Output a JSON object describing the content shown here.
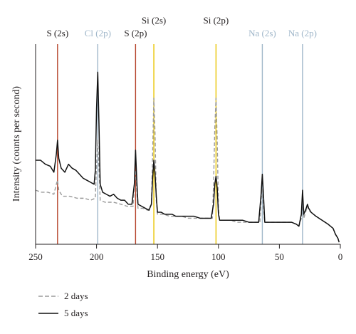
{
  "chart_data": {
    "type": "line",
    "xlabel": "Binding energy (eV)",
    "ylabel": "Intensity (counts per second)",
    "xlim": [
      250,
      0
    ],
    "x_reversed": true,
    "xticks": [
      250,
      200,
      150,
      100,
      50,
      0
    ],
    "y_units": "relative (no y tick labels shown)",
    "ylim": [
      0,
      100
    ],
    "legend_position": "bottom-left",
    "peak_markers": [
      {
        "label": "S (2s)",
        "x": 232,
        "color": "#b5452c"
      },
      {
        "label": "Cl (2p)",
        "x": 199,
        "color": "#9fb6c9"
      },
      {
        "label": "S (2p)",
        "x": 168,
        "color": "#b5452c"
      },
      {
        "label": "Si (2s)",
        "x": 153,
        "color": "#e9c400"
      },
      {
        "label": "Si (2p)",
        "x": 102,
        "color": "#e9c400"
      },
      {
        "label": "Na (2s)",
        "x": 64,
        "color": "#9fb6c9"
      },
      {
        "label": "Na (2p)",
        "x": 31,
        "color": "#9fb6c9"
      }
    ],
    "series": [
      {
        "name": "2 days",
        "style": "dashed",
        "color": "#9a9a9a",
        "points": [
          [
            250,
            27
          ],
          [
            245,
            26
          ],
          [
            240,
            26
          ],
          [
            235,
            25
          ],
          [
            233,
            30
          ],
          [
            232,
            32
          ],
          [
            231,
            27
          ],
          [
            228,
            24
          ],
          [
            222,
            24
          ],
          [
            216,
            23
          ],
          [
            210,
            23
          ],
          [
            205,
            22
          ],
          [
            201,
            23
          ],
          [
            200,
            40
          ],
          [
            199,
            52
          ],
          [
            198,
            38
          ],
          [
            197,
            22
          ],
          [
            193,
            21
          ],
          [
            186,
            21
          ],
          [
            180,
            20
          ],
          [
            175,
            19
          ],
          [
            170,
            19
          ],
          [
            169,
            30
          ],
          [
            168,
            37
          ],
          [
            167,
            27
          ],
          [
            166,
            18
          ],
          [
            162,
            18
          ],
          [
            158,
            17
          ],
          [
            155,
            20
          ],
          [
            154,
            45
          ],
          [
            153,
            73
          ],
          [
            152,
            55
          ],
          [
            151,
            22
          ],
          [
            150,
            15
          ],
          [
            145,
            15
          ],
          [
            140,
            14
          ],
          [
            135,
            14
          ],
          [
            130,
            14
          ],
          [
            125,
            13
          ],
          [
            120,
            13
          ],
          [
            115,
            13
          ],
          [
            110,
            13
          ],
          [
            105,
            13
          ],
          [
            104,
            30
          ],
          [
            103,
            58
          ],
          [
            102,
            73
          ],
          [
            101,
            52
          ],
          [
            100,
            18
          ],
          [
            99,
            12
          ],
          [
            95,
            12
          ],
          [
            90,
            12
          ],
          [
            85,
            11
          ],
          [
            80,
            11
          ],
          [
            75,
            11
          ],
          [
            70,
            11
          ],
          [
            66,
            11
          ],
          [
            65,
            22
          ],
          [
            64,
            28
          ],
          [
            63,
            18
          ],
          [
            62,
            11
          ],
          [
            58,
            11
          ],
          [
            55,
            11
          ],
          [
            50,
            11
          ],
          [
            45,
            11
          ],
          [
            40,
            11
          ],
          [
            36,
            10
          ],
          [
            34,
            9
          ],
          [
            32,
            13
          ],
          [
            31,
            22
          ],
          [
            30,
            13
          ],
          [
            28,
            17
          ],
          [
            27,
            19
          ],
          [
            26,
            17
          ],
          [
            24,
            16
          ],
          [
            20,
            14
          ],
          [
            15,
            12
          ],
          [
            10,
            10
          ],
          [
            6,
            8
          ],
          [
            4,
            5
          ],
          [
            2,
            3
          ],
          [
            1,
            1
          ]
        ]
      },
      {
        "name": "5 days",
        "style": "solid",
        "color": "#111111",
        "points": [
          [
            250,
            42
          ],
          [
            246,
            42
          ],
          [
            242,
            40
          ],
          [
            238,
            39
          ],
          [
            235,
            36
          ],
          [
            233,
            45
          ],
          [
            232,
            52
          ],
          [
            231,
            43
          ],
          [
            229,
            38
          ],
          [
            226,
            36
          ],
          [
            223,
            40
          ],
          [
            220,
            38
          ],
          [
            217,
            37
          ],
          [
            214,
            35
          ],
          [
            211,
            33
          ],
          [
            208,
            32
          ],
          [
            205,
            31
          ],
          [
            202,
            30
          ],
          [
            201,
            37
          ],
          [
            200,
            68
          ],
          [
            199,
            86
          ],
          [
            198,
            60
          ],
          [
            197,
            30
          ],
          [
            195,
            26
          ],
          [
            192,
            25
          ],
          [
            189,
            24
          ],
          [
            186,
            25
          ],
          [
            183,
            23
          ],
          [
            180,
            22
          ],
          [
            177,
            22
          ],
          [
            174,
            20
          ],
          [
            171,
            20
          ],
          [
            169,
            30
          ],
          [
            168,
            47
          ],
          [
            167,
            32
          ],
          [
            166,
            20
          ],
          [
            163,
            19
          ],
          [
            160,
            18
          ],
          [
            157,
            17
          ],
          [
            155,
            20
          ],
          [
            154,
            33
          ],
          [
            153,
            42
          ],
          [
            152,
            35
          ],
          [
            151,
            24
          ],
          [
            150,
            16
          ],
          [
            147,
            16
          ],
          [
            144,
            15
          ],
          [
            141,
            15
          ],
          [
            138,
            15
          ],
          [
            135,
            14
          ],
          [
            130,
            14
          ],
          [
            125,
            14
          ],
          [
            120,
            14
          ],
          [
            115,
            13
          ],
          [
            110,
            13
          ],
          [
            106,
            13
          ],
          [
            104,
            20
          ],
          [
            103,
            30
          ],
          [
            102,
            34
          ],
          [
            101,
            28
          ],
          [
            100,
            15
          ],
          [
            99,
            12
          ],
          [
            95,
            12
          ],
          [
            90,
            12
          ],
          [
            85,
            12
          ],
          [
            80,
            12
          ],
          [
            75,
            11
          ],
          [
            70,
            11
          ],
          [
            67,
            11
          ],
          [
            65,
            25
          ],
          [
            64,
            35
          ],
          [
            63,
            24
          ],
          [
            62,
            11
          ],
          [
            58,
            11
          ],
          [
            55,
            11
          ],
          [
            50,
            11
          ],
          [
            45,
            11
          ],
          [
            40,
            11
          ],
          [
            36,
            10
          ],
          [
            34,
            9
          ],
          [
            32,
            15
          ],
          [
            31,
            27
          ],
          [
            30,
            15
          ],
          [
            28,
            18
          ],
          [
            27,
            20
          ],
          [
            26,
            18
          ],
          [
            24,
            16
          ],
          [
            20,
            14
          ],
          [
            15,
            12
          ],
          [
            10,
            10
          ],
          [
            6,
            8
          ],
          [
            4,
            5
          ],
          [
            2,
            3
          ],
          [
            1,
            1
          ]
        ]
      }
    ]
  }
}
